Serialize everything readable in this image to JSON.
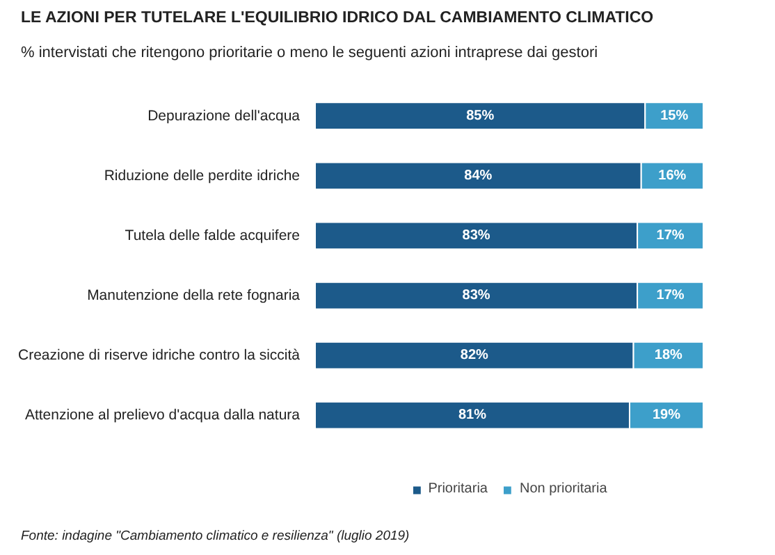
{
  "chart_data": {
    "type": "bar",
    "orientation": "horizontal",
    "stacked": true,
    "legend": "bottom",
    "title": "LE AZIONI PER TUTELARE L'EQUILIBRIO IDRICO DAL CAMBIAMENTO CLIMATICO",
    "subtitle": "% intervistati che ritengono prioritarie o meno le seguenti azioni intraprese dai gestori",
    "categories": [
      "Depurazione dell'acqua",
      "Riduzione delle perdite idriche",
      "Tutela delle falde acquifere",
      "Manutenzione della rete fognaria",
      "Creazione di riserve idriche contro la siccità",
      "Attenzione al prelievo d'acqua dalla natura"
    ],
    "series": [
      {
        "name": "Prioritaria",
        "color": "#1c5a8a",
        "values": [
          85,
          84,
          83,
          83,
          82,
          81
        ],
        "value_labels": [
          "85%",
          "84%",
          "83%",
          "83%",
          "82%",
          "81%"
        ]
      },
      {
        "name": "Non prioritaria",
        "color": "#3d9fca",
        "values": [
          15,
          16,
          17,
          17,
          18,
          19
        ],
        "value_labels": [
          "15%",
          "16%",
          "17%",
          "17%",
          "18%",
          "19%"
        ]
      }
    ],
    "annotations": [
      "Fonte: indagine \"Cambiamento climatico e resilienza\" (luglio 2019)"
    ]
  }
}
